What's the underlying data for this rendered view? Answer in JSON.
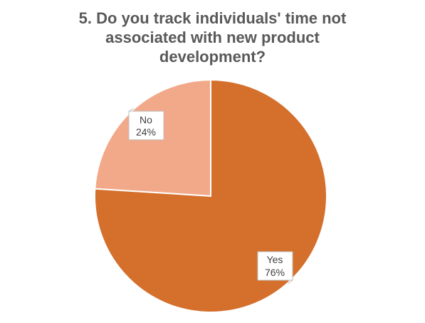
{
  "chart_data": {
    "type": "pie",
    "title_lines": [
      "5. Do you track individuals' time not",
      "associated with new product",
      "development?"
    ],
    "slices": [
      {
        "label": "No",
        "value": 24,
        "percent_label": "24%",
        "color": "#f2a98a"
      },
      {
        "label": "Yes",
        "value": 76,
        "percent_label": "76%",
        "color": "#d46f2c"
      }
    ],
    "legend": false
  }
}
